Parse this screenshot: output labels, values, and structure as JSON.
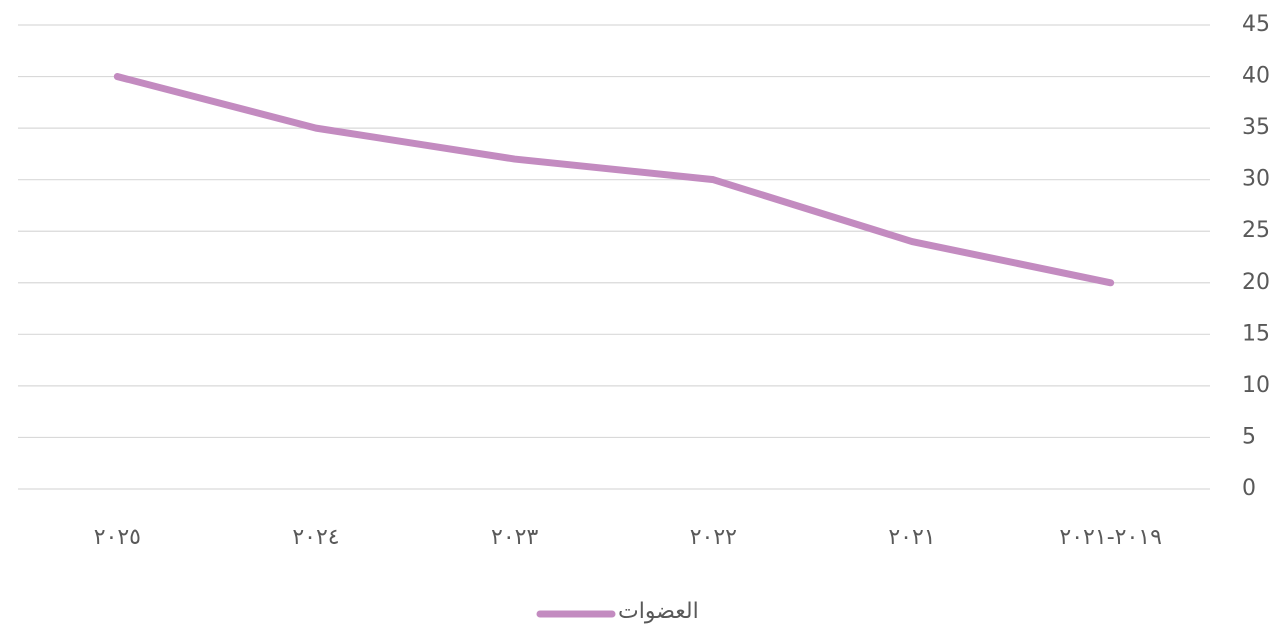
{
  "chart_data": {
    "type": "line",
    "categories": [
      "٢٠٢٥",
      "٢٠٢٤",
      "٢٠٢٣",
      "٢٠٢٢",
      "٢٠٢١",
      "٢٠١٩-٢٠٢١"
    ],
    "series": [
      {
        "name": "العضوات",
        "color": "#c38bc0",
        "values": [
          40,
          35,
          32,
          30,
          24,
          20
        ]
      }
    ],
    "ylim": [
      0,
      45
    ],
    "yticks": [
      0,
      5,
      10,
      15,
      20,
      25,
      30,
      35,
      40,
      45
    ],
    "grid": true,
    "legend": "bottom"
  }
}
